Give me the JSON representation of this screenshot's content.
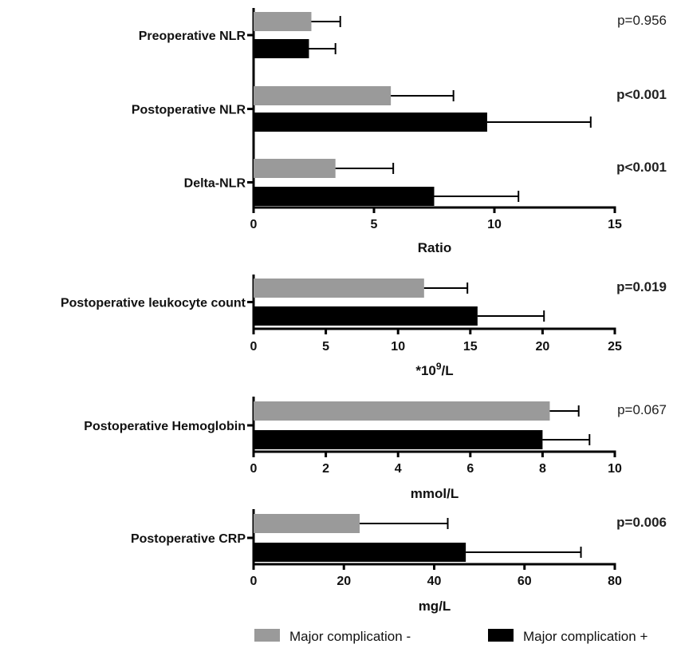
{
  "chart_data": [
    {
      "type": "bar",
      "orientation": "horizontal",
      "categories": [
        "Preoperative NLR",
        "Postoperative NLR",
        "Delta-NLR"
      ],
      "series": [
        {
          "name": "Major complication -",
          "values": [
            2.4,
            5.7,
            3.4
          ],
          "error": [
            1.2,
            2.6,
            2.4
          ]
        },
        {
          "name": "Major complication +",
          "values": [
            2.3,
            9.7,
            7.5
          ],
          "error": [
            1.1,
            4.3,
            3.5
          ]
        }
      ],
      "p_values": [
        {
          "text": "p=0.956",
          "bold": false
        },
        {
          "text": "p<0.001",
          "bold": true
        },
        {
          "text": "p<0.001",
          "bold": true
        }
      ],
      "xlabel": "Ratio",
      "xlim": [
        0,
        15
      ],
      "xticks": [
        "0",
        "5",
        "10",
        "15"
      ]
    },
    {
      "type": "bar",
      "orientation": "horizontal",
      "categories": [
        "Postoperative leukocyte count"
      ],
      "series": [
        {
          "name": "Major complication -",
          "values": [
            11.8
          ],
          "error": [
            3.0
          ]
        },
        {
          "name": "Major complication +",
          "values": [
            15.5
          ],
          "error": [
            4.6
          ]
        }
      ],
      "p_values": [
        {
          "text": "p=0.019",
          "bold": true
        }
      ],
      "xlabel": "*10",
      "xlabel_sup": "9",
      "xlabel_suffix": "/L",
      "xlim": [
        0,
        25
      ],
      "xticks": [
        "0",
        "5",
        "10",
        "15",
        "20",
        "25"
      ]
    },
    {
      "type": "bar",
      "orientation": "horizontal",
      "categories": [
        "Postoperative Hemoglobin"
      ],
      "series": [
        {
          "name": "Major complication -",
          "values": [
            8.2
          ],
          "error": [
            0.8
          ]
        },
        {
          "name": "Major complication +",
          "values": [
            8.0
          ],
          "error": [
            1.3
          ]
        }
      ],
      "p_values": [
        {
          "text": "p=0.067",
          "bold": false
        }
      ],
      "xlabel": "mmol/L",
      "xlim": [
        0,
        10
      ],
      "xticks": [
        "0",
        "2",
        "4",
        "6",
        "8",
        "10"
      ]
    },
    {
      "type": "bar",
      "orientation": "horizontal",
      "categories": [
        "Postoperative CRP"
      ],
      "series": [
        {
          "name": "Major complication -",
          "values": [
            23.5
          ],
          "error": [
            19.5
          ]
        },
        {
          "name": "Major complication +",
          "values": [
            47.0
          ],
          "error": [
            25.5
          ]
        }
      ],
      "p_values": [
        {
          "text": "p=0.006",
          "bold": true
        }
      ],
      "xlabel": "mg/L",
      "xlim": [
        0,
        80
      ],
      "xticks": [
        "0",
        "20",
        "40",
        "60",
        "80"
      ]
    }
  ],
  "legend": [
    {
      "label": "Major complication -",
      "color": "#9a9a9a"
    },
    {
      "label": "Major complication +",
      "color": "#000000"
    }
  ],
  "colors": {
    "neg": "#9a9a9a",
    "pos": "#000000"
  }
}
